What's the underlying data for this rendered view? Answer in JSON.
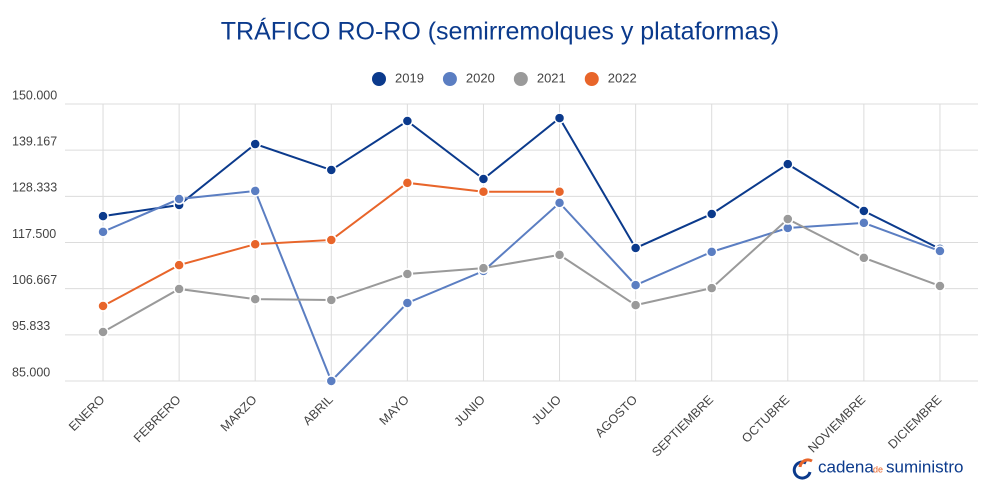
{
  "chart_data": {
    "type": "line",
    "title": "TRÁFICO RO-RO (semirremolques y plataformas)",
    "categories": [
      "ENERO",
      "FEBRERO",
      "MARZO",
      "ABRIL",
      "MAYO",
      "JUNIO",
      "JULIO",
      "AGOSTO",
      "SEPTIEMBRE",
      "OCTUBRE",
      "NOVIEMBRE",
      "DICIEMBRE"
    ],
    "series": [
      {
        "name": "2019",
        "color": "#0b3a8c",
        "values": [
          123700,
          126300,
          140600,
          134500,
          146000,
          132400,
          146700,
          116200,
          124200,
          135900,
          124900,
          116000
        ]
      },
      {
        "name": "2020",
        "color": "#5b7ec2",
        "values": [
          120000,
          127700,
          129600,
          85000,
          103300,
          110800,
          126800,
          107500,
          115300,
          120900,
          122100,
          115500
        ]
      },
      {
        "name": "2021",
        "color": "#9a9a9a",
        "values": [
          96500,
          106600,
          104200,
          104000,
          110100,
          111500,
          114600,
          102800,
          106800,
          123000,
          113900,
          107300
        ]
      },
      {
        "name": "2022",
        "color": "#e8652a",
        "values": [
          102600,
          112200,
          117100,
          118100,
          131500,
          129400,
          129400,
          null,
          null,
          null,
          null,
          null
        ]
      }
    ],
    "ylim": [
      85000,
      150000
    ],
    "yticks": [
      {
        "value": 150000,
        "label": "150.000"
      },
      {
        "value": 139167,
        "label": "139.167"
      },
      {
        "value": 128333,
        "label": "128.333"
      },
      {
        "value": 117500,
        "label": "117.500"
      },
      {
        "value": 106667,
        "label": "106.667"
      },
      {
        "value": 95833,
        "label": "95.833"
      },
      {
        "value": 85000,
        "label": "85.000"
      }
    ],
    "grid": true,
    "legend": "top"
  },
  "brand": {
    "name": "cadena",
    "joiner": "de",
    "suffix": "suministro"
  }
}
